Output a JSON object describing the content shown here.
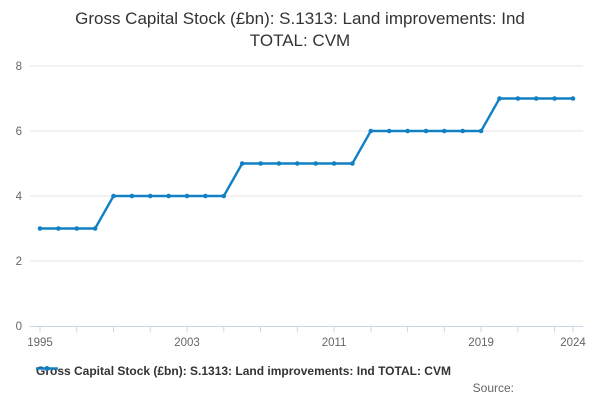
{
  "title": {
    "line1": "Gross Capital Stock (£bn): S.1313: Land improvements: Ind",
    "line2": "TOTAL: CVM"
  },
  "legend": {
    "label": "Gross Capital Stock (£bn): S.1313: Land improvements: Ind TOTAL: CVM"
  },
  "source": {
    "label": "Source:"
  },
  "colors": {
    "line": "#1380c4",
    "grid": "#e6e6e6",
    "axis": "#ccd6eb",
    "tick_label": "#666666",
    "title_text": "#333333"
  },
  "y_axis": {
    "tick_values": [
      0,
      2,
      4,
      6,
      8
    ],
    "min": 0,
    "max": 8
  },
  "x_axis": {
    "label_years": [
      1995,
      2003,
      2011,
      2019,
      2024
    ],
    "tick_years": [
      1995,
      1997,
      1999,
      2001,
      2003,
      2005,
      2007,
      2009,
      2011,
      2013,
      2015,
      2017,
      2019,
      2021,
      2023,
      2024
    ]
  },
  "chart_data": {
    "type": "line",
    "title": "Gross Capital Stock (£bn): S.1313: Land improvements: Ind TOTAL: CVM",
    "xlabel": "",
    "ylabel": "",
    "ylim": [
      0,
      8
    ],
    "xlim": [
      1995,
      2024
    ],
    "grid": "horizontal",
    "legend_position": "bottom",
    "x": [
      1995,
      1996,
      1997,
      1998,
      1999,
      2000,
      2001,
      2002,
      2003,
      2004,
      2005,
      2006,
      2007,
      2008,
      2009,
      2010,
      2011,
      2012,
      2013,
      2014,
      2015,
      2016,
      2017,
      2018,
      2019,
      2020,
      2021,
      2022,
      2023,
      2024
    ],
    "series": [
      {
        "name": "Gross Capital Stock (£bn): S.1313: Land improvements: Ind TOTAL: CVM",
        "values": [
          3,
          3,
          3,
          3,
          4,
          4,
          4,
          4,
          4,
          4,
          4,
          5,
          5,
          5,
          5,
          5,
          5,
          5,
          6,
          6,
          6,
          6,
          6,
          6,
          6,
          7,
          7,
          7,
          7,
          7
        ]
      }
    ]
  }
}
